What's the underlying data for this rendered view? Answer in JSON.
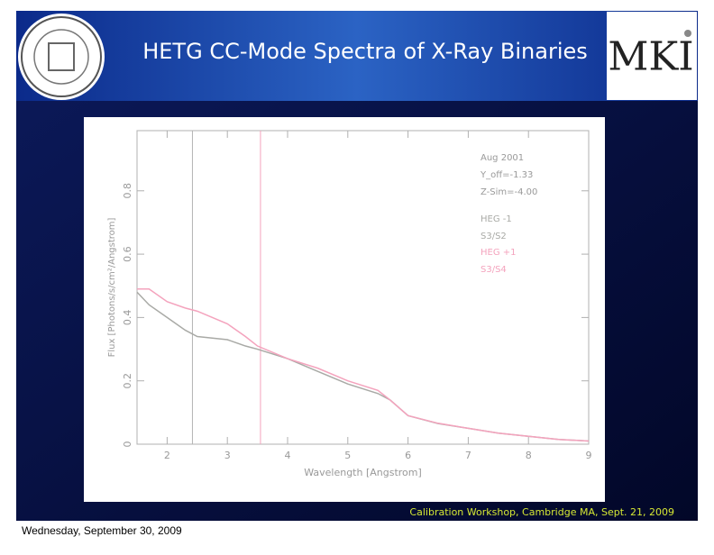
{
  "slide": {
    "title": "HETG CC-Mode Spectra of X-Ray Binaries",
    "footer": "Calibration Workshop, Cambridge MA, Sept. 21, 2009",
    "date": "Wednesday, September 30, 2009"
  },
  "chart_data": {
    "type": "line",
    "xlabel": "Wavelength [Angstrom]",
    "ylabel": "Flux [Photons/s/cm²/Angstrom]",
    "annotations": [
      "Aug 2001",
      "Y_off=-1.33",
      "Z-Sim=-4.00"
    ],
    "x": [
      1.5,
      1.7,
      2,
      2.3,
      2.5,
      3,
      3.3,
      3.5,
      4,
      4.5,
      5,
      5.5,
      5.7,
      6,
      6.5,
      7,
      7.5,
      8,
      8.5,
      9
    ],
    "series": [
      {
        "name": "HEG -1",
        "detector": "S3/S2",
        "color": "#a9aaa6",
        "values": [
          0.48,
          0.44,
          0.4,
          0.36,
          0.34,
          0.33,
          0.31,
          0.3,
          0.27,
          0.23,
          0.19,
          0.16,
          0.14,
          0.09,
          0.065,
          0.05,
          0.035,
          0.025,
          0.015,
          0.01
        ]
      },
      {
        "name": "HEG +1",
        "detector": "S3/S4",
        "color": "#f4a3bd",
        "values": [
          0.49,
          0.49,
          0.45,
          0.43,
          0.42,
          0.38,
          0.34,
          0.31,
          0.27,
          0.24,
          0.2,
          0.17,
          0.14,
          0.09,
          0.066,
          0.05,
          0.035,
          0.025,
          0.015,
          0.01
        ]
      }
    ],
    "vlines": [
      {
        "x": 2.42,
        "color": "#b4b4b4"
      },
      {
        "x": 3.55,
        "color": "#f4a3bd"
      }
    ],
    "xlim": [
      1.5,
      9
    ],
    "ylim": [
      0,
      0.99
    ],
    "xticks": [
      2,
      3,
      4,
      5,
      6,
      7,
      8,
      9
    ],
    "yticks": [
      0,
      0.2,
      0.4,
      0.6,
      0.8
    ]
  }
}
